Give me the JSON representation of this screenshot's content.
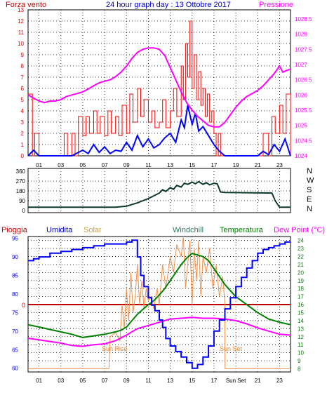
{
  "chart_data": [
    {
      "type": "line",
      "title": "24 hour graph day : 13 Ottobre 2017",
      "left_label": "Forza vento",
      "right_label": "Pressione",
      "x_ticks": [
        "01",
        "03",
        "05",
        "07",
        "09",
        "11",
        "13",
        "15",
        "17",
        "19",
        "21",
        "23"
      ],
      "left_ticks": [
        "0",
        "1",
        "2",
        "3",
        "4",
        "5",
        "6",
        "7",
        "8",
        "9",
        "10",
        "11",
        "12",
        "13"
      ],
      "right_ticks": [
        "1024",
        "1024.5",
        "1025",
        "1025.5",
        "1026",
        "1026.5",
        "1027",
        "1027.5",
        "1028",
        "1028.5"
      ],
      "x_range": [
        0,
        24
      ],
      "left_range": [
        0,
        13
      ],
      "right_range": [
        1024,
        1028.8
      ],
      "colors": {
        "gust": "#ff0000",
        "wind": "#0000ff",
        "pressure": "#ff00ff",
        "grid": "#000000",
        "bg": "#ffffff"
      },
      "series": [
        {
          "key": "pressure",
          "axis": "right",
          "x": [
            0,
            0.5,
            1,
            1.5,
            2,
            2.5,
            3,
            3.5,
            4,
            4.5,
            5,
            5.5,
            6,
            6.5,
            7,
            7.5,
            8,
            8.5,
            9,
            9.5,
            10,
            10.5,
            11,
            11.5,
            12,
            12.5,
            13,
            13.5,
            14,
            14.5,
            15,
            15.5,
            16,
            16.5,
            17,
            17.5,
            18,
            18.5,
            19,
            19.5,
            20,
            20.5,
            21,
            21.5,
            22,
            22.5,
            23,
            23.3,
            23.6,
            24
          ],
          "y": [
            1026.0,
            1025.9,
            1025.8,
            1025.75,
            1025.8,
            1025.8,
            1025.85,
            1025.95,
            1026.0,
            1026.05,
            1026.1,
            1026.2,
            1026.3,
            1026.4,
            1026.45,
            1026.5,
            1026.6,
            1026.75,
            1026.95,
            1027.2,
            1027.4,
            1027.5,
            1027.55,
            1027.55,
            1027.5,
            1027.3,
            1026.9,
            1026.5,
            1026.1,
            1025.75,
            1025.5,
            1025.3,
            1025.15,
            1025.0,
            1024.95,
            1024.95,
            1025.1,
            1025.35,
            1025.6,
            1025.8,
            1025.95,
            1026.05,
            1026.15,
            1026.3,
            1026.5,
            1026.7,
            1026.95,
            1026.75,
            1026.8,
            1026.85
          ]
        },
        {
          "key": "gust",
          "axis": "left",
          "step": true,
          "x": [
            0,
            0.4,
            0.6,
            1,
            2,
            3,
            3.3,
            3.6,
            4,
            4.3,
            4.6,
            5,
            5.3,
            5.6,
            6,
            6.3,
            6.6,
            7,
            7.3,
            7.6,
            8,
            8.3,
            8.6,
            9,
            9.3,
            9.6,
            10,
            10.3,
            10.6,
            11,
            11.3,
            11.6,
            12,
            12.3,
            12.6,
            13,
            13.3,
            13.6,
            14,
            14.2,
            14.4,
            14.6,
            14.8,
            15,
            15.2,
            15.4,
            15.6,
            15.8,
            16,
            16.2,
            16.4,
            16.6,
            16.8,
            17,
            17.2,
            17.4,
            17.6,
            18,
            18.5,
            19,
            20,
            21,
            21.5,
            22,
            22.3,
            22.6,
            23,
            23.3,
            23.6,
            24
          ],
          "y": [
            5.5,
            0,
            2,
            0,
            0,
            0,
            2,
            0,
            2,
            0,
            3.5,
            1.8,
            3.5,
            2,
            4,
            2,
            3.5,
            1.8,
            4,
            2,
            3.5,
            1.8,
            4.5,
            2,
            5.5,
            3,
            6,
            3.5,
            5,
            3,
            4,
            2.5,
            3,
            5,
            2.5,
            4,
            6,
            3.5,
            8,
            5,
            10,
            7,
            12,
            6,
            9,
            5,
            7.5,
            4.5,
            6,
            3.5,
            5.5,
            3,
            4,
            2,
            0,
            2,
            0,
            0,
            0,
            0,
            0,
            0,
            2,
            0,
            3.5,
            2,
            4.5,
            2,
            5.5,
            0
          ]
        },
        {
          "key": "wind",
          "axis": "left",
          "x": [
            0,
            0.5,
            1,
            2,
            3,
            4,
            5,
            5.5,
            6,
            6.5,
            7,
            7.5,
            8,
            8.5,
            9,
            9.5,
            10,
            10.5,
            11,
            11.5,
            12,
            12.5,
            13,
            13.5,
            14,
            14.3,
            14.6,
            15,
            15.3,
            15.6,
            16,
            16.5,
            17,
            17.5,
            18,
            19,
            20,
            21,
            21.5,
            22,
            22.5,
            23,
            23.5,
            24
          ],
          "y": [
            0,
            0.5,
            0,
            0,
            0,
            0,
            0.5,
            0.2,
            1,
            0.3,
            0.8,
            0.2,
            0.5,
            0.4,
            1.2,
            0.5,
            1.8,
            0.8,
            1.5,
            0.7,
            1,
            1.6,
            2,
            1.2,
            3.2,
            2.5,
            4.5,
            2.8,
            3.8,
            2.2,
            2.6,
            1.8,
            1,
            0.4,
            0,
            0,
            0,
            0,
            0.4,
            0.1,
            1,
            0.4,
            1.5,
            0
          ]
        }
      ]
    },
    {
      "type": "line",
      "title": "",
      "right_labels": [
        "N",
        "W",
        "S",
        "E",
        "N"
      ],
      "left_ticks": [
        "0",
        "90",
        "180",
        "270",
        "360"
      ],
      "x_range": [
        0,
        24
      ],
      "y_range": [
        0,
        360
      ],
      "colors": {
        "line": "#0c3a25"
      },
      "series": [
        {
          "key": "direction",
          "x": [
            0,
            8,
            9,
            9.5,
            10,
            10.5,
            11,
            11.5,
            12,
            12.3,
            12.6,
            13,
            13.3,
            13.6,
            14,
            14.3,
            14.6,
            15,
            15.3,
            15.6,
            16,
            16.3,
            16.6,
            17,
            17.3,
            17.6,
            18,
            22.3,
            22.6,
            23,
            24
          ],
          "y": [
            30,
            30,
            40,
            55,
            70,
            90,
            110,
            135,
            160,
            190,
            175,
            210,
            195,
            230,
            215,
            250,
            240,
            260,
            245,
            265,
            240,
            255,
            235,
            250,
            245,
            170,
            165,
            160,
            90,
            30,
            30
          ]
        }
      ]
    },
    {
      "type": "line",
      "title": "",
      "legend": [
        "Pioggia",
        "Umidita",
        "Solar",
        "Windchill",
        "Temperatura",
        "Dew Point (°C)"
      ],
      "left_ticks": [
        "60",
        "65",
        "70",
        "75",
        "80",
        "85",
        "90",
        "95"
      ],
      "right_ticks": [
        "8",
        "9",
        "10",
        "11",
        "12",
        "13",
        "14",
        "15",
        "16",
        "17",
        "18",
        "19",
        "20",
        "21",
        "22",
        "23",
        "24"
      ],
      "x_ticks": [
        "01",
        "03",
        "05",
        "07",
        "09",
        "11",
        "13",
        "15",
        "17",
        "Sun Set",
        "21",
        "23"
      ],
      "zero_label": "0",
      "annotations": [
        "Sun Rise",
        "Sun Set"
      ],
      "x_range": [
        0,
        24
      ],
      "left_range": [
        59,
        95.5
      ],
      "right_range": [
        7.6,
        24.5
      ],
      "colors": {
        "rain": "#c00000",
        "humidity": "#0000ff",
        "solar": "#e8822a",
        "windchill": "#008000",
        "temperature": "#008000",
        "dewpoint": "#ff00ff"
      },
      "series": [
        {
          "key": "humidity",
          "axis": "left",
          "step": true,
          "x": [
            0,
            0.5,
            1,
            1.5,
            2,
            3,
            4,
            5,
            6,
            7,
            8,
            8.5,
            9,
            9.5,
            10,
            10.3,
            10.6,
            11,
            11.3,
            11.6,
            12,
            12.3,
            12.6,
            13,
            13.5,
            14,
            14.5,
            15,
            15.5,
            16,
            16.5,
            17,
            17.5,
            18,
            18.5,
            19,
            19.5,
            20,
            20.5,
            21,
            21.5,
            22,
            22.5,
            23,
            23.5,
            24
          ],
          "y": [
            89,
            89.5,
            90,
            90,
            91,
            91.5,
            92,
            92.5,
            93,
            93.5,
            93.5,
            93.5,
            94,
            94.5,
            90,
            85,
            82,
            79,
            77,
            75.5,
            73,
            71,
            68,
            66,
            64.5,
            63,
            61.5,
            60,
            61,
            63,
            66,
            70,
            73,
            76,
            79,
            82,
            84.5,
            87,
            89,
            91,
            92,
            92.5,
            93,
            93.5,
            94,
            94
          ]
        },
        {
          "key": "dewpoint",
          "axis": "right",
          "x": [
            0,
            1,
            2,
            3,
            4,
            5,
            6,
            7,
            8,
            9,
            10,
            11,
            12,
            13,
            14,
            15,
            16,
            17,
            18,
            19,
            20,
            21,
            22,
            23,
            24
          ],
          "y": [
            11.8,
            11.6,
            11.4,
            11.2,
            10.9,
            10.8,
            11.0,
            11.1,
            11.5,
            12.2,
            13.0,
            13.4,
            13.8,
            14.2,
            14.3,
            14.4,
            14.3,
            14.3,
            14.2,
            14.0,
            13.6,
            13.1,
            12.7,
            12.3,
            12.2
          ]
        },
        {
          "key": "temperature",
          "axis": "right",
          "x": [
            0,
            1,
            2,
            3,
            4,
            5,
            6,
            7,
            8,
            8.5,
            9,
            9.5,
            10,
            10.5,
            11,
            11.5,
            12,
            12.5,
            13,
            13.5,
            14,
            14.5,
            15,
            15.5,
            16,
            16.5,
            17,
            17.5,
            18,
            19,
            20,
            21,
            22,
            23,
            24
          ],
          "y": [
            13.5,
            13.2,
            12.9,
            12.6,
            12.3,
            11.9,
            12.1,
            12.3,
            12.6,
            12.8,
            13.2,
            14.0,
            14.8,
            15.4,
            16.0,
            16.5,
            17.2,
            18.0,
            19.0,
            20.0,
            21.0,
            21.8,
            22.4,
            22.2,
            22.0,
            21.5,
            20.5,
            19.5,
            18.5,
            17.0,
            16.0,
            15.0,
            14.2,
            13.8,
            13.5
          ]
        },
        {
          "key": "solar",
          "axis": "right",
          "x": [
            0,
            7.4,
            7.5,
            8,
            8.4,
            8.6,
            8.8,
            9,
            9.2,
            9.4,
            9.6,
            9.8,
            10,
            10.2,
            10.4,
            10.6,
            10.8,
            11,
            11.2,
            11.5,
            11.8,
            12,
            12.3,
            12.6,
            13,
            13.3,
            13.6,
            14,
            14.2,
            14.4,
            14.6,
            14.8,
            15,
            15.2,
            15.4,
            15.6,
            15.8,
            16,
            16.3,
            16.6,
            16.9,
            17.2,
            17.5,
            17.8,
            18.0,
            18.01,
            24
          ],
          "y": [
            8,
            8,
            12,
            12.5,
            11.5,
            16,
            13,
            18,
            14,
            20,
            15,
            17,
            21,
            16,
            19,
            15.5,
            18,
            16.5,
            17,
            15.5,
            18,
            16,
            21,
            18,
            22,
            20,
            23.5,
            22,
            24.5,
            18,
            21,
            24,
            16,
            23,
            19,
            24,
            17,
            22,
            20,
            23,
            18,
            21,
            17,
            19.5,
            16,
            8,
            8
          ]
        }
      ]
    }
  ]
}
